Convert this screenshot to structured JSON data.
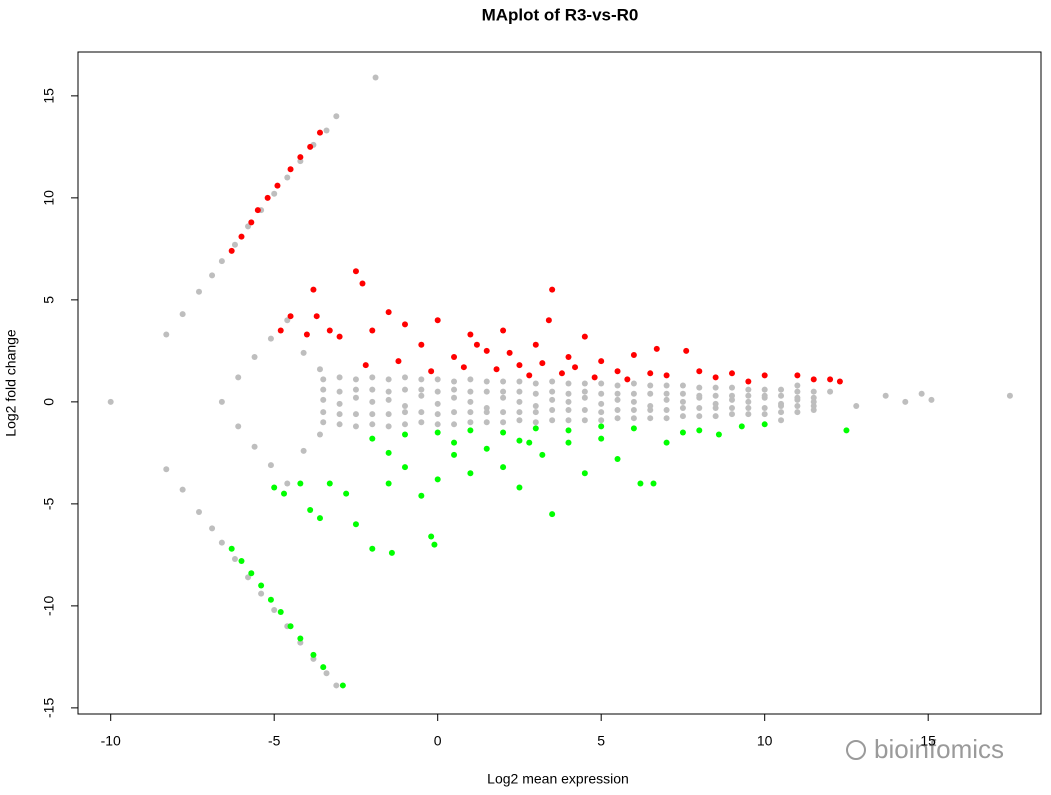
{
  "chart_data": {
    "type": "scatter",
    "title": "MAplot of R3-vs-R0",
    "x_label": "Log2 mean expression",
    "y_label": "Log2 fold change",
    "watermark": "bioinfomics",
    "xlim": [
      -11.0,
      18.45
    ],
    "ylim": [
      -15.3,
      17.15
    ],
    "xticks": [
      -10,
      -5,
      0,
      5,
      10,
      15
    ],
    "yticks": [
      -15,
      -10,
      -5,
      0,
      5,
      10,
      15
    ],
    "series": [
      {
        "color": "#bebebe",
        "x": [
          -10,
          -8.3,
          -8.3,
          -7.8,
          -7.8,
          -7.3,
          -7.3,
          -6.9,
          -6.9,
          -6.6,
          -6.6,
          -6.2,
          -6.2,
          -5.8,
          -5.8,
          -5.4,
          -5.4,
          -5.0,
          -5.0,
          -4.6,
          -4.6,
          -4.2,
          -4.2,
          -3.8,
          -3.8,
          -3.4,
          -3.4,
          -3.1,
          -3.1,
          -1.9,
          -6.6,
          -6.1,
          -6.1,
          -5.6,
          -5.6,
          -5.1,
          -5.1,
          -4.6,
          -4.6,
          -4.1,
          -4.1,
          -3.6,
          -3.6,
          -3.5,
          -3.5,
          -3.5,
          -3.5,
          -3.5,
          -3,
          -3,
          -3,
          -3,
          -3,
          -2.5,
          -2.5,
          -2.5,
          -2.5,
          -2.5,
          -2,
          -2,
          -2,
          -2,
          -2,
          -1.5,
          -1.5,
          -1.5,
          -1.5,
          -1.5,
          -1,
          -1,
          -1,
          -1,
          -1,
          -0.5,
          -0.5,
          -0.5,
          -0.5,
          -0.5,
          0,
          0,
          0,
          0,
          0,
          0.5,
          0.5,
          0.5,
          0.5,
          0.5,
          1,
          1,
          1,
          1,
          1,
          1.5,
          1.5,
          1.5,
          1.5,
          1.5,
          2,
          2,
          2,
          2,
          2,
          2.5,
          2.5,
          2.5,
          2.5,
          2.5,
          3,
          3,
          3,
          3,
          3,
          3.5,
          3.5,
          3.5,
          3.5,
          3.5,
          4,
          4,
          4,
          4,
          4,
          4.5,
          4.5,
          4.5,
          4.5,
          4.5,
          5,
          5,
          5,
          5,
          5,
          5.5,
          5.5,
          5.5,
          5.5,
          5.5,
          6,
          6,
          6,
          6,
          6,
          6.5,
          6.5,
          6.5,
          6.5,
          6.5,
          7,
          7,
          7,
          7,
          7,
          7.5,
          7.5,
          7.5,
          7.5,
          7.5,
          8,
          8,
          8,
          8,
          8,
          8.5,
          8.5,
          8.5,
          8.5,
          8.5,
          9,
          9,
          9,
          9,
          9,
          9.5,
          9.5,
          9.5,
          9.5,
          9.5,
          10,
          10,
          10,
          10,
          10,
          10.5,
          10.5,
          10.5,
          10.5,
          10.5,
          11,
          11,
          11,
          11,
          11,
          11.5,
          11.5,
          11.5,
          11.5,
          11.5,
          12,
          12.8,
          13.7,
          14.3,
          14.8,
          15.1,
          17.5,
          10.5,
          11
        ],
        "values": [
          0,
          3.3,
          -3.3,
          4.3,
          -4.3,
          5.4,
          -5.4,
          6.2,
          -6.2,
          6.9,
          -6.9,
          7.7,
          -7.7,
          8.6,
          -8.6,
          9.4,
          -9.4,
          10.2,
          -10.2,
          11.0,
          -11.0,
          11.8,
          -11.8,
          12.6,
          -12.6,
          13.3,
          -13.3,
          14.0,
          -13.9,
          15.9,
          0,
          1.2,
          -1.2,
          2.2,
          -2.2,
          3.1,
          -3.1,
          4.0,
          -4.0,
          2.4,
          -2.4,
          1.6,
          -1.6,
          1.1,
          0.6,
          0.1,
          -0.5,
          -1.0,
          1.2,
          0.5,
          -0.1,
          -0.6,
          -1.1,
          1.1,
          0.6,
          0.2,
          -0.6,
          -1.2,
          1.2,
          0.6,
          0,
          -0.6,
          -1.1,
          1.1,
          0.5,
          0.1,
          -0.6,
          -1.2,
          1.2,
          0.6,
          -0.2,
          -0.5,
          -1.1,
          1.1,
          0.6,
          0.3,
          -0.5,
          -1.0,
          1.1,
          0.5,
          -0.1,
          -0.6,
          -1.1,
          1.0,
          0.6,
          0.2,
          -0.5,
          -1.1,
          1.1,
          0.5,
          0,
          -0.5,
          -1.0,
          1.0,
          0.5,
          -0.3,
          -0.5,
          -1.0,
          1.0,
          0.5,
          0.2,
          -0.5,
          -1.0,
          1.0,
          0.5,
          0,
          -0.5,
          -0.9,
          0.9,
          0.4,
          -0.2,
          -0.5,
          -1.0,
          1.0,
          0.5,
          0.1,
          -0.4,
          -0.9,
          0.9,
          0.4,
          0,
          -0.4,
          -0.9,
          0.9,
          0.5,
          0.2,
          -0.4,
          -0.9,
          0.9,
          0.4,
          -0.1,
          -0.5,
          -0.9,
          0.8,
          0.4,
          0.1,
          -0.4,
          -0.8,
          0.9,
          0.4,
          0,
          -0.4,
          -0.8,
          0.8,
          0.4,
          -0.2,
          -0.4,
          -0.8,
          0.8,
          0.4,
          0.1,
          -0.4,
          -0.8,
          0.8,
          0.4,
          0,
          -0.3,
          -0.7,
          0.7,
          0.3,
          0.2,
          -0.3,
          -0.7,
          0.7,
          0.3,
          -0.1,
          -0.3,
          -0.7,
          0.7,
          0.3,
          0.1,
          -0.3,
          -0.6,
          0.6,
          0.3,
          0,
          -0.3,
          -0.6,
          0.6,
          0.3,
          0.2,
          -0.3,
          -0.6,
          0.6,
          0.3,
          -0.1,
          -0.2,
          -0.5,
          0.5,
          0.2,
          0.1,
          -0.2,
          -0.5,
          0.5,
          0.2,
          0,
          -0.2,
          -0.4,
          0.5,
          -0.2,
          0.3,
          0.0,
          0.4,
          0.1,
          0.3,
          -0.9,
          0.8
        ]
      },
      {
        "color": "#ff0000",
        "x": [
          -6.3,
          -6.0,
          -5.7,
          -5.5,
          -5.2,
          -4.9,
          -4.5,
          -4.2,
          -3.9,
          -3.6,
          -4.8,
          -4.5,
          -4.0,
          -3.7,
          -3.3,
          -3.0,
          -2.5,
          -3.8,
          -2.3,
          -2,
          -1.5,
          -1,
          -0.5,
          0,
          0.5,
          1,
          1.5,
          2,
          2.5,
          3,
          3.5,
          3.4,
          4,
          4.5,
          5,
          5.5,
          6,
          6.7,
          6.5,
          7,
          7.6,
          8,
          8.5,
          9,
          9.5,
          10,
          11,
          11.5,
          12,
          12.3,
          -1.2,
          -0.2,
          0.8,
          1.8,
          2.8,
          3.8,
          4.8,
          5.8,
          -2.2,
          1.2,
          2.2,
          3.2,
          4.2
        ],
        "values": [
          7.4,
          8.1,
          8.8,
          9.4,
          10,
          10.6,
          11.4,
          12,
          12.5,
          13.2,
          3.5,
          4.2,
          3.3,
          4.2,
          3.5,
          3.2,
          6.4,
          5.5,
          5.8,
          3.5,
          4.4,
          3.8,
          2.8,
          4,
          2.2,
          3.3,
          2.5,
          3.5,
          1.8,
          2.8,
          5.5,
          4.0,
          2.2,
          3.2,
          2.0,
          1.5,
          2.3,
          2.6,
          1.4,
          1.3,
          2.5,
          1.5,
          1.2,
          1.4,
          1.0,
          1.3,
          1.3,
          1.1,
          1.1,
          1.0,
          2.0,
          1.5,
          1.7,
          1.6,
          1.3,
          1.4,
          1.2,
          1.1,
          1.8,
          2.8,
          2.4,
          1.9,
          1.7
        ]
      },
      {
        "color": "#00ff00",
        "x": [
          -6.3,
          -6,
          -5.7,
          -5.4,
          -5.1,
          -4.8,
          -4.5,
          -4.2,
          -3.8,
          -3.5,
          -2.9,
          -5.0,
          -4.7,
          -4.2,
          -3.9,
          -3.6,
          -3.3,
          -2.8,
          -2.5,
          -2.0,
          -1.4,
          -0.2,
          -0.1,
          -1.5,
          -1,
          -0.5,
          0,
          0.5,
          1,
          1.5,
          2,
          2.5,
          2.8,
          3.2,
          3.5,
          4,
          4.5,
          5,
          5.5,
          6.2,
          6.6,
          7,
          7.5,
          8,
          8.6,
          9.3,
          10,
          12.5,
          -2,
          -1,
          0,
          1,
          2,
          3,
          4,
          5,
          6,
          -1.5,
          0.5,
          2.5
        ],
        "values": [
          -7.2,
          -7.8,
          -8.4,
          -9,
          -9.7,
          -10.3,
          -11,
          -11.6,
          -12.4,
          -13,
          -13.9,
          -4.2,
          -4.5,
          -4.0,
          -5.3,
          -5.7,
          -4.0,
          -4.5,
          -6.0,
          -7.2,
          -7.4,
          -6.6,
          -7.0,
          -4.0,
          -3.2,
          -4.6,
          -3.8,
          -2.6,
          -3.5,
          -2.3,
          -3.2,
          -4.2,
          -2.0,
          -2.6,
          -5.5,
          -2.0,
          -3.5,
          -1.8,
          -2.8,
          -4,
          -4,
          -2.0,
          -1.5,
          -1.4,
          -1.6,
          -1.2,
          -1.1,
          -1.4,
          -1.8,
          -1.6,
          -1.5,
          -1.4,
          -1.5,
          -1.3,
          -1.4,
          -1.2,
          -1.3,
          -2.5,
          -2,
          -1.9
        ]
      }
    ]
  }
}
